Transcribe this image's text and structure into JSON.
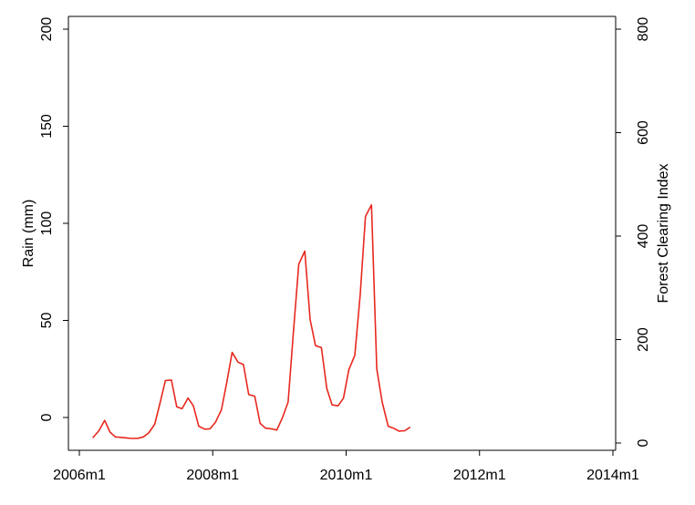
{
  "chart_data": {
    "type": "line",
    "title": "",
    "xlabel": "",
    "x_ticks": [
      {
        "value": 2006.0,
        "label": "2006m1"
      },
      {
        "value": 2008.0,
        "label": "2008m1"
      },
      {
        "value": 2010.0,
        "label": "2010m1"
      },
      {
        "value": 2012.0,
        "label": "2012m1"
      },
      {
        "value": 2014.0,
        "label": "2014m1"
      }
    ],
    "xlim": [
      2006.0,
      2014.0
    ],
    "left_axis": {
      "label": "Rain (mm)",
      "ylim": [
        -5,
        205
      ],
      "ticks": [
        0,
        50,
        100,
        150,
        200
      ]
    },
    "right_axis": {
      "label": "Forest Clearing Index",
      "ylim": [
        -4,
        815
      ],
      "ticks": [
        0,
        200,
        400,
        600,
        800
      ]
    },
    "grid": false,
    "legend": "none",
    "colors": {
      "series": "#e8281e",
      "axes": "#000000"
    },
    "series": [
      {
        "axis": "left",
        "x": [
          2006.2,
          2006.29,
          2006.38,
          2006.46,
          2006.54,
          2006.63,
          2006.71,
          2006.79,
          2006.88,
          2006.96,
          2007.04,
          2007.13,
          2007.21,
          2007.29,
          2007.38,
          2007.46,
          2007.54,
          2007.63,
          2007.71,
          2007.79,
          2007.88,
          2007.96,
          2008.04,
          2008.13,
          2008.21,
          2008.29,
          2008.38,
          2008.46,
          2008.54,
          2008.63,
          2008.71,
          2008.79,
          2008.88,
          2008.96,
          2009.04,
          2009.13,
          2009.21,
          2009.29,
          2009.38,
          2009.46,
          2009.54,
          2009.63,
          2009.71,
          2009.79,
          2009.88,
          2009.96,
          2010.04,
          2010.13,
          2010.21,
          2010.29,
          2010.38,
          2010.46,
          2010.54,
          2010.63,
          2010.71,
          2010.79,
          2010.88,
          2010.96
        ],
        "y": [
          -10.5,
          -7,
          -1.5,
          -7.5,
          -10,
          -10.3,
          -10.5,
          -10.8,
          -10.7,
          -10,
          -8,
          -3.5,
          7.5,
          19,
          19.3,
          5.5,
          4.5,
          10,
          6,
          -4.5,
          -6,
          -5.8,
          -2.5,
          4,
          18,
          33.5,
          28.5,
          27.3,
          11.8,
          11,
          -3,
          -5.5,
          -5.8,
          -6.5,
          -0.5,
          8,
          44,
          79,
          85.7,
          50.5,
          37,
          36,
          15,
          6.5,
          6,
          10,
          24.5,
          32,
          63,
          103.5,
          109.5,
          25,
          8,
          -4.5,
          -5.5,
          -7,
          -6.8,
          -5
        ]
      }
    ]
  }
}
